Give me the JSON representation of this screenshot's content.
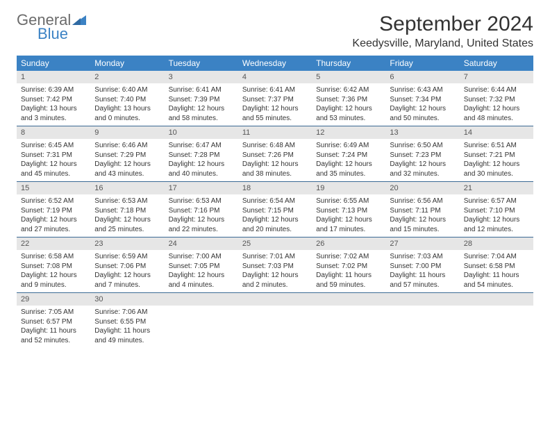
{
  "logo": {
    "word1": "General",
    "word2": "Blue"
  },
  "title": "September 2024",
  "location": "Keedysville, Maryland, United States",
  "colors": {
    "header_bg": "#3b82c4",
    "header_text": "#ffffff",
    "daynum_bg": "#e6e6e6",
    "rule": "#3b6a94",
    "body_text": "#333333",
    "logo_gray": "#6b6b6b",
    "logo_blue": "#3b82c4"
  },
  "font": {
    "body_size": 10,
    "weekday_size": 12,
    "title_size": 30,
    "location_size": 16
  },
  "weekdays": [
    "Sunday",
    "Monday",
    "Tuesday",
    "Wednesday",
    "Thursday",
    "Friday",
    "Saturday"
  ],
  "weeks": [
    [
      {
        "n": "1",
        "sunrise": "6:39 AM",
        "sunset": "7:42 PM",
        "daylight": "13 hours and 3 minutes."
      },
      {
        "n": "2",
        "sunrise": "6:40 AM",
        "sunset": "7:40 PM",
        "daylight": "13 hours and 0 minutes."
      },
      {
        "n": "3",
        "sunrise": "6:41 AM",
        "sunset": "7:39 PM",
        "daylight": "12 hours and 58 minutes."
      },
      {
        "n": "4",
        "sunrise": "6:41 AM",
        "sunset": "7:37 PM",
        "daylight": "12 hours and 55 minutes."
      },
      {
        "n": "5",
        "sunrise": "6:42 AM",
        "sunset": "7:36 PM",
        "daylight": "12 hours and 53 minutes."
      },
      {
        "n": "6",
        "sunrise": "6:43 AM",
        "sunset": "7:34 PM",
        "daylight": "12 hours and 50 minutes."
      },
      {
        "n": "7",
        "sunrise": "6:44 AM",
        "sunset": "7:32 PM",
        "daylight": "12 hours and 48 minutes."
      }
    ],
    [
      {
        "n": "8",
        "sunrise": "6:45 AM",
        "sunset": "7:31 PM",
        "daylight": "12 hours and 45 minutes."
      },
      {
        "n": "9",
        "sunrise": "6:46 AM",
        "sunset": "7:29 PM",
        "daylight": "12 hours and 43 minutes."
      },
      {
        "n": "10",
        "sunrise": "6:47 AM",
        "sunset": "7:28 PM",
        "daylight": "12 hours and 40 minutes."
      },
      {
        "n": "11",
        "sunrise": "6:48 AM",
        "sunset": "7:26 PM",
        "daylight": "12 hours and 38 minutes."
      },
      {
        "n": "12",
        "sunrise": "6:49 AM",
        "sunset": "7:24 PM",
        "daylight": "12 hours and 35 minutes."
      },
      {
        "n": "13",
        "sunrise": "6:50 AM",
        "sunset": "7:23 PM",
        "daylight": "12 hours and 32 minutes."
      },
      {
        "n": "14",
        "sunrise": "6:51 AM",
        "sunset": "7:21 PM",
        "daylight": "12 hours and 30 minutes."
      }
    ],
    [
      {
        "n": "15",
        "sunrise": "6:52 AM",
        "sunset": "7:19 PM",
        "daylight": "12 hours and 27 minutes."
      },
      {
        "n": "16",
        "sunrise": "6:53 AM",
        "sunset": "7:18 PM",
        "daylight": "12 hours and 25 minutes."
      },
      {
        "n": "17",
        "sunrise": "6:53 AM",
        "sunset": "7:16 PM",
        "daylight": "12 hours and 22 minutes."
      },
      {
        "n": "18",
        "sunrise": "6:54 AM",
        "sunset": "7:15 PM",
        "daylight": "12 hours and 20 minutes."
      },
      {
        "n": "19",
        "sunrise": "6:55 AM",
        "sunset": "7:13 PM",
        "daylight": "12 hours and 17 minutes."
      },
      {
        "n": "20",
        "sunrise": "6:56 AM",
        "sunset": "7:11 PM",
        "daylight": "12 hours and 15 minutes."
      },
      {
        "n": "21",
        "sunrise": "6:57 AM",
        "sunset": "7:10 PM",
        "daylight": "12 hours and 12 minutes."
      }
    ],
    [
      {
        "n": "22",
        "sunrise": "6:58 AM",
        "sunset": "7:08 PM",
        "daylight": "12 hours and 9 minutes."
      },
      {
        "n": "23",
        "sunrise": "6:59 AM",
        "sunset": "7:06 PM",
        "daylight": "12 hours and 7 minutes."
      },
      {
        "n": "24",
        "sunrise": "7:00 AM",
        "sunset": "7:05 PM",
        "daylight": "12 hours and 4 minutes."
      },
      {
        "n": "25",
        "sunrise": "7:01 AM",
        "sunset": "7:03 PM",
        "daylight": "12 hours and 2 minutes."
      },
      {
        "n": "26",
        "sunrise": "7:02 AM",
        "sunset": "7:02 PM",
        "daylight": "11 hours and 59 minutes."
      },
      {
        "n": "27",
        "sunrise": "7:03 AM",
        "sunset": "7:00 PM",
        "daylight": "11 hours and 57 minutes."
      },
      {
        "n": "28",
        "sunrise": "7:04 AM",
        "sunset": "6:58 PM",
        "daylight": "11 hours and 54 minutes."
      }
    ],
    [
      {
        "n": "29",
        "sunrise": "7:05 AM",
        "sunset": "6:57 PM",
        "daylight": "11 hours and 52 minutes."
      },
      {
        "n": "30",
        "sunrise": "7:06 AM",
        "sunset": "6:55 PM",
        "daylight": "11 hours and 49 minutes."
      },
      null,
      null,
      null,
      null,
      null
    ]
  ],
  "labels": {
    "sunrise": "Sunrise:",
    "sunset": "Sunset:",
    "daylight": "Daylight:"
  }
}
